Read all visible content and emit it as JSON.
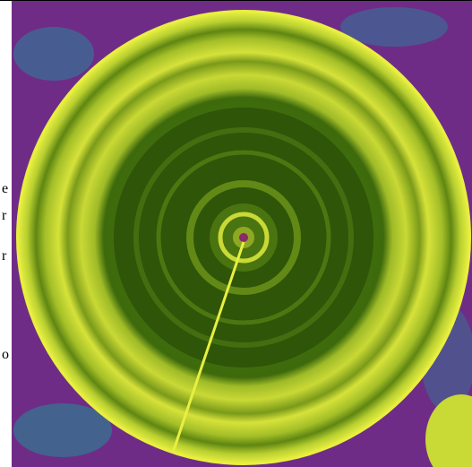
{
  "margin_text": [
    "e",
    "r",
    "r",
    "o"
  ]
}
